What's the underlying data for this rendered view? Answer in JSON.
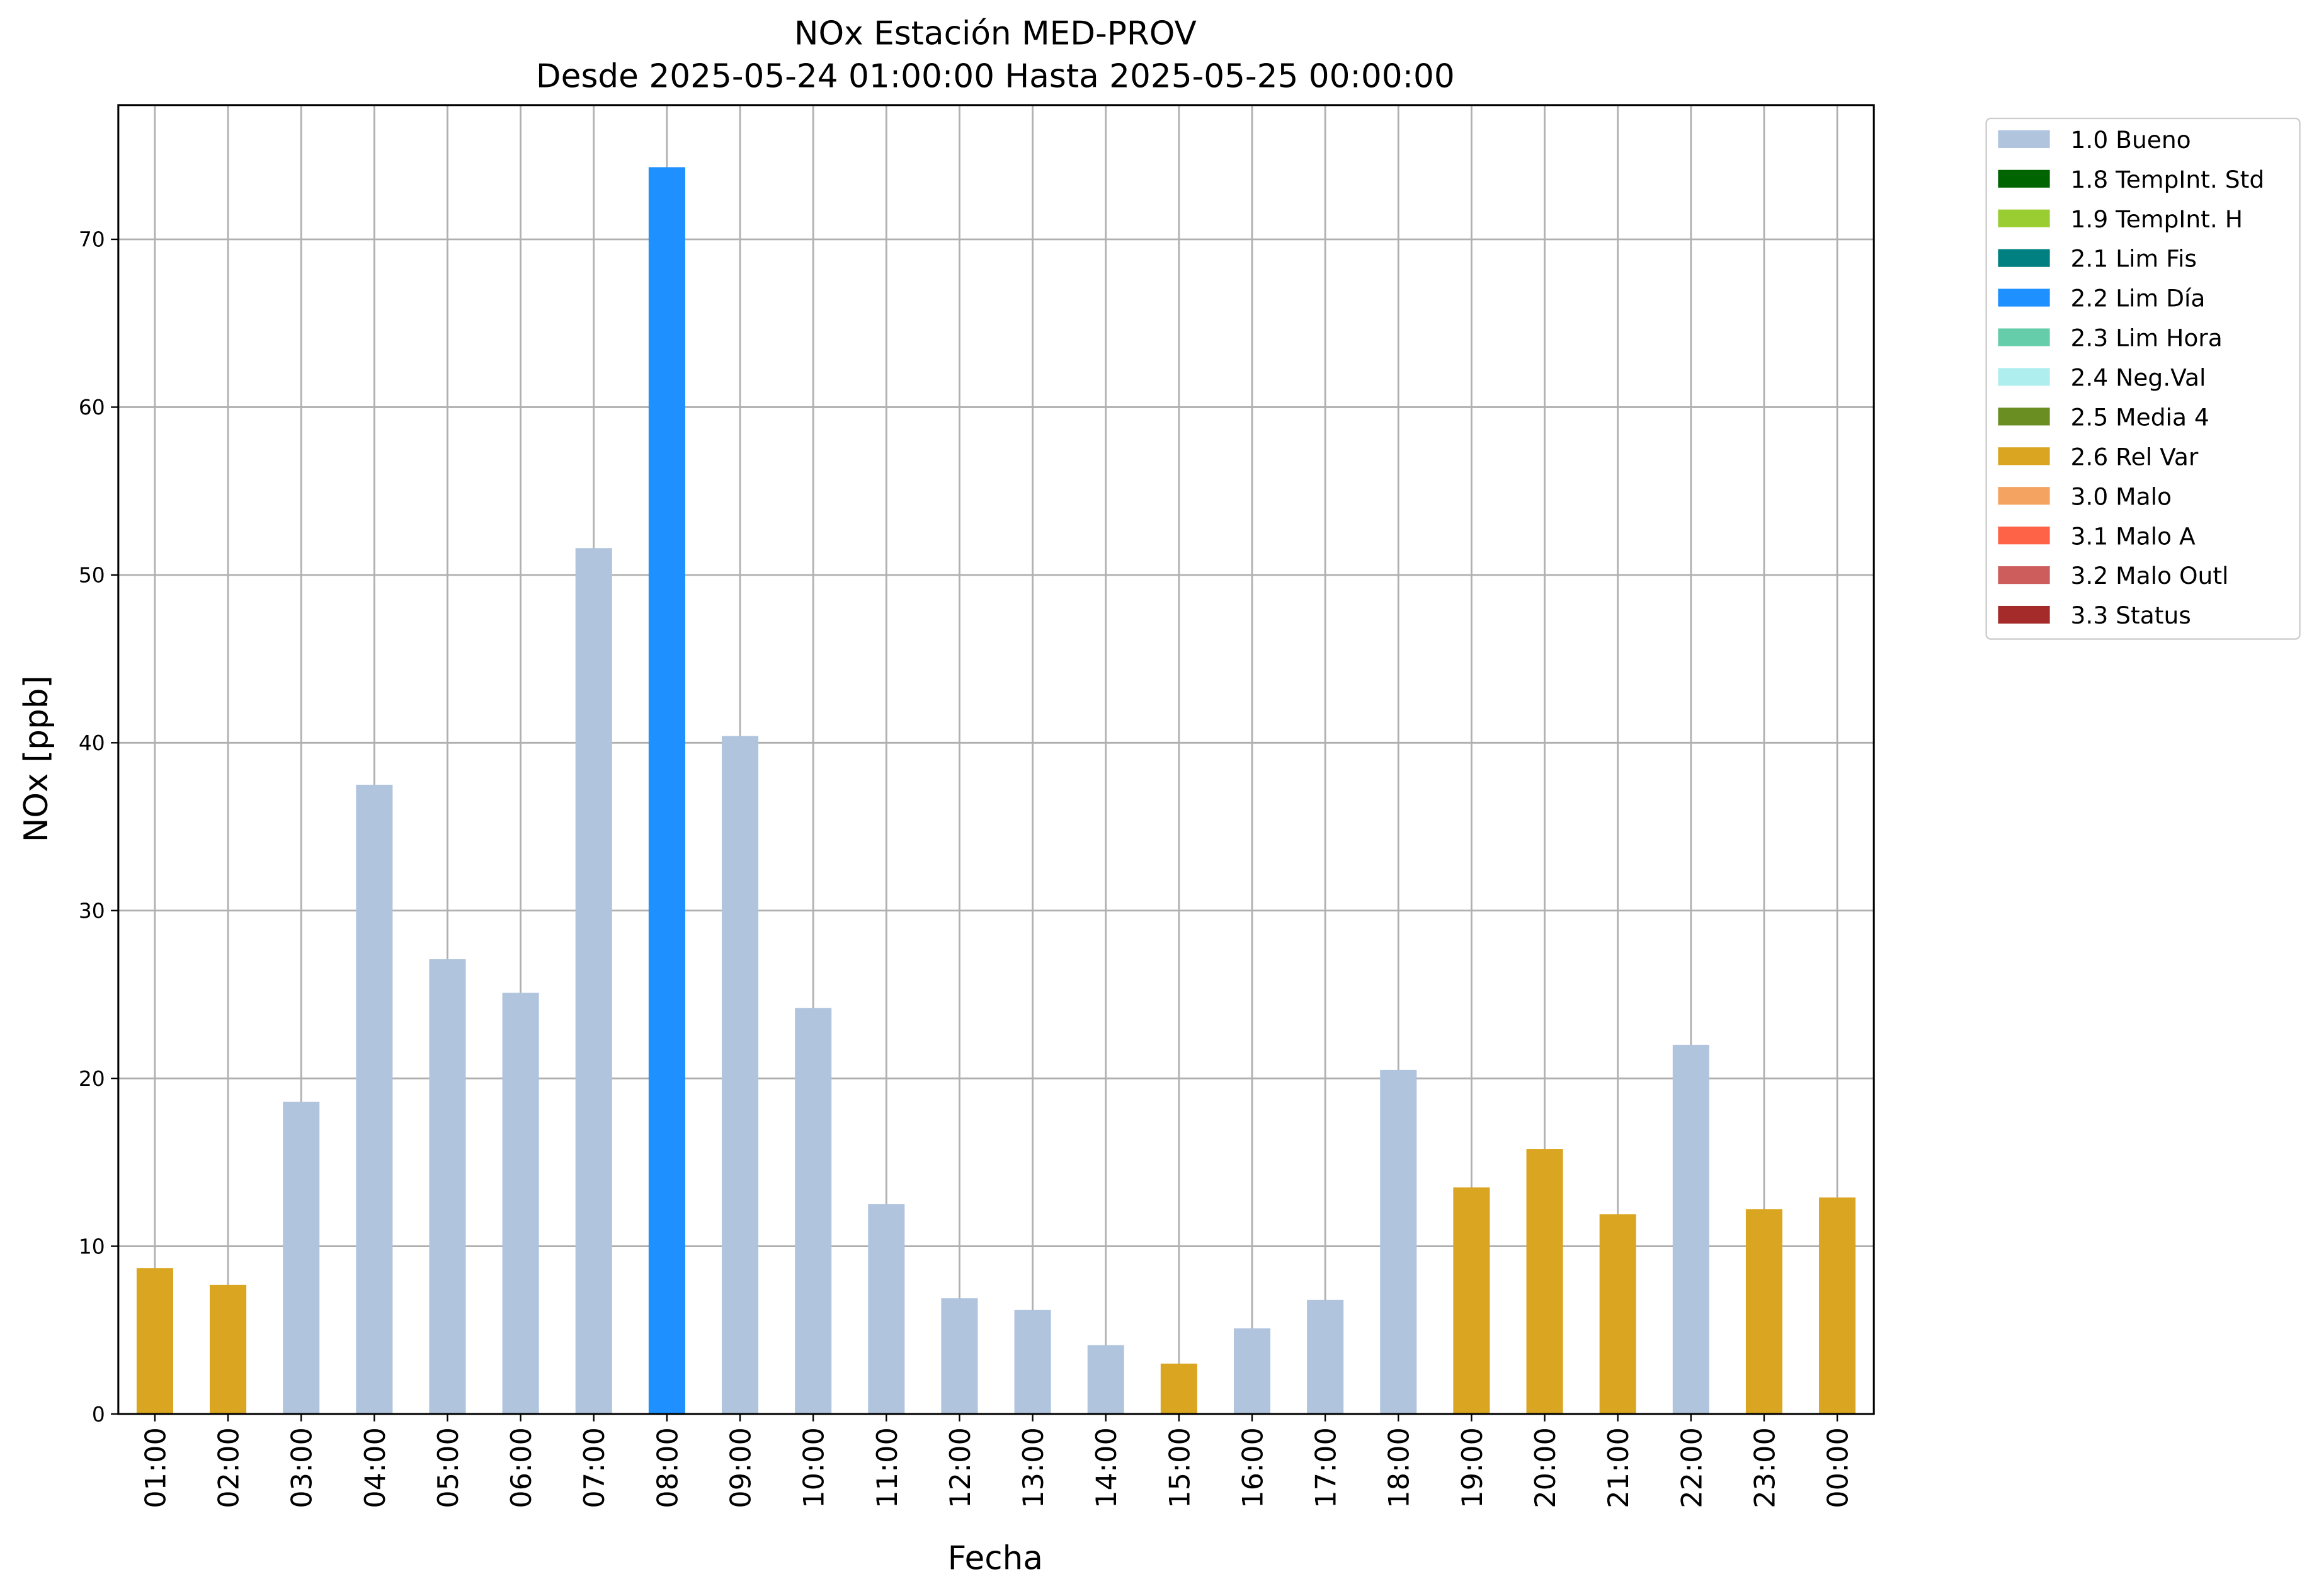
{
  "chart_data": {
    "type": "bar",
    "title": "NOx Estación MED-PROV",
    "subtitle": "Desde 2025-05-24 01:00:00 Hasta 2025-05-25 00:00:00",
    "x_label": "Fecha",
    "y_label": "NOx [ppb]",
    "categories": [
      "01:00",
      "02:00",
      "03:00",
      "04:00",
      "05:00",
      "06:00",
      "07:00",
      "08:00",
      "09:00",
      "10:00",
      "11:00",
      "12:00",
      "13:00",
      "14:00",
      "15:00",
      "16:00",
      "17:00",
      "18:00",
      "19:00",
      "20:00",
      "21:00",
      "22:00",
      "23:00",
      "00:00"
    ],
    "series": [
      {
        "name": "1.0 Bueno",
        "color": "#b0c4de",
        "values": [
          null,
          null,
          18.6,
          37.5,
          27.1,
          25.1,
          51.6,
          null,
          40.4,
          24.2,
          12.5,
          6.9,
          6.2,
          4.1,
          null,
          5.1,
          6.8,
          20.5,
          null,
          null,
          null,
          22.0,
          null,
          null
        ]
      },
      {
        "name": "1.8 TempInt. Std",
        "color": "#006400",
        "values": [
          null,
          null,
          null,
          null,
          null,
          null,
          null,
          null,
          null,
          null,
          null,
          null,
          null,
          null,
          null,
          null,
          null,
          null,
          null,
          null,
          null,
          null,
          null,
          null
        ]
      },
      {
        "name": "1.9 TempInt. H",
        "color": "#9acd32",
        "values": [
          null,
          null,
          null,
          null,
          null,
          null,
          null,
          null,
          null,
          null,
          null,
          null,
          null,
          null,
          null,
          null,
          null,
          null,
          null,
          null,
          null,
          null,
          null,
          null
        ]
      },
      {
        "name": "2.1 Lim Fis",
        "color": "#008080",
        "values": [
          null,
          null,
          null,
          null,
          null,
          null,
          null,
          null,
          null,
          null,
          null,
          null,
          null,
          null,
          null,
          null,
          null,
          null,
          null,
          null,
          null,
          null,
          null,
          null
        ]
      },
      {
        "name": "2.2 Lim Día",
        "color": "#1e90ff",
        "values": [
          null,
          null,
          null,
          null,
          null,
          null,
          null,
          74.3,
          null,
          null,
          null,
          null,
          null,
          null,
          null,
          null,
          null,
          null,
          null,
          null,
          null,
          null,
          null,
          null
        ]
      },
      {
        "name": "2.3 Lim Hora",
        "color": "#66cdaa",
        "values": [
          null,
          null,
          null,
          null,
          null,
          null,
          null,
          null,
          null,
          null,
          null,
          null,
          null,
          null,
          null,
          null,
          null,
          null,
          null,
          null,
          null,
          null,
          null,
          null
        ]
      },
      {
        "name": "2.4 Neg.Val",
        "color": "#afeeee",
        "values": [
          null,
          null,
          null,
          null,
          null,
          null,
          null,
          null,
          null,
          null,
          null,
          null,
          null,
          null,
          null,
          null,
          null,
          null,
          null,
          null,
          null,
          null,
          null,
          null
        ]
      },
      {
        "name": "2.5 Media 4",
        "color": "#6b8e23",
        "values": [
          null,
          null,
          null,
          null,
          null,
          null,
          null,
          null,
          null,
          null,
          null,
          null,
          null,
          null,
          null,
          null,
          null,
          null,
          null,
          null,
          null,
          null,
          null,
          null
        ]
      },
      {
        "name": "2.6 Rel Var",
        "color": "#daa520",
        "values": [
          8.7,
          7.7,
          null,
          null,
          null,
          null,
          null,
          null,
          null,
          null,
          null,
          null,
          null,
          null,
          3.0,
          null,
          null,
          null,
          13.5,
          15.8,
          11.9,
          null,
          12.2,
          12.9
        ]
      },
      {
        "name": "3.0 Malo",
        "color": "#f4a460",
        "values": [
          null,
          null,
          null,
          null,
          null,
          null,
          null,
          null,
          null,
          null,
          null,
          null,
          null,
          null,
          null,
          null,
          null,
          null,
          null,
          null,
          null,
          null,
          null,
          null
        ]
      },
      {
        "name": "3.1 Malo A",
        "color": "#ff6347",
        "values": [
          null,
          null,
          null,
          null,
          null,
          null,
          null,
          null,
          null,
          null,
          null,
          null,
          null,
          null,
          null,
          null,
          null,
          null,
          null,
          null,
          null,
          null,
          null,
          null
        ]
      },
      {
        "name": "3.2 Malo Outl",
        "color": "#cd5c5c",
        "values": [
          null,
          null,
          null,
          null,
          null,
          null,
          null,
          null,
          null,
          null,
          null,
          null,
          null,
          null,
          null,
          null,
          null,
          null,
          null,
          null,
          null,
          null,
          null,
          null
        ]
      },
      {
        "name": "3.3 Status",
        "color": "#a52a2a",
        "values": [
          null,
          null,
          null,
          null,
          null,
          null,
          null,
          null,
          null,
          null,
          null,
          null,
          null,
          null,
          null,
          null,
          null,
          null,
          null,
          null,
          null,
          null,
          null,
          null
        ]
      }
    ],
    "ylim": [
      0,
      78
    ],
    "yticks": [
      0,
      10,
      20,
      30,
      40,
      50,
      60,
      70
    ],
    "grid": true,
    "legend": "outside-upper-right"
  }
}
